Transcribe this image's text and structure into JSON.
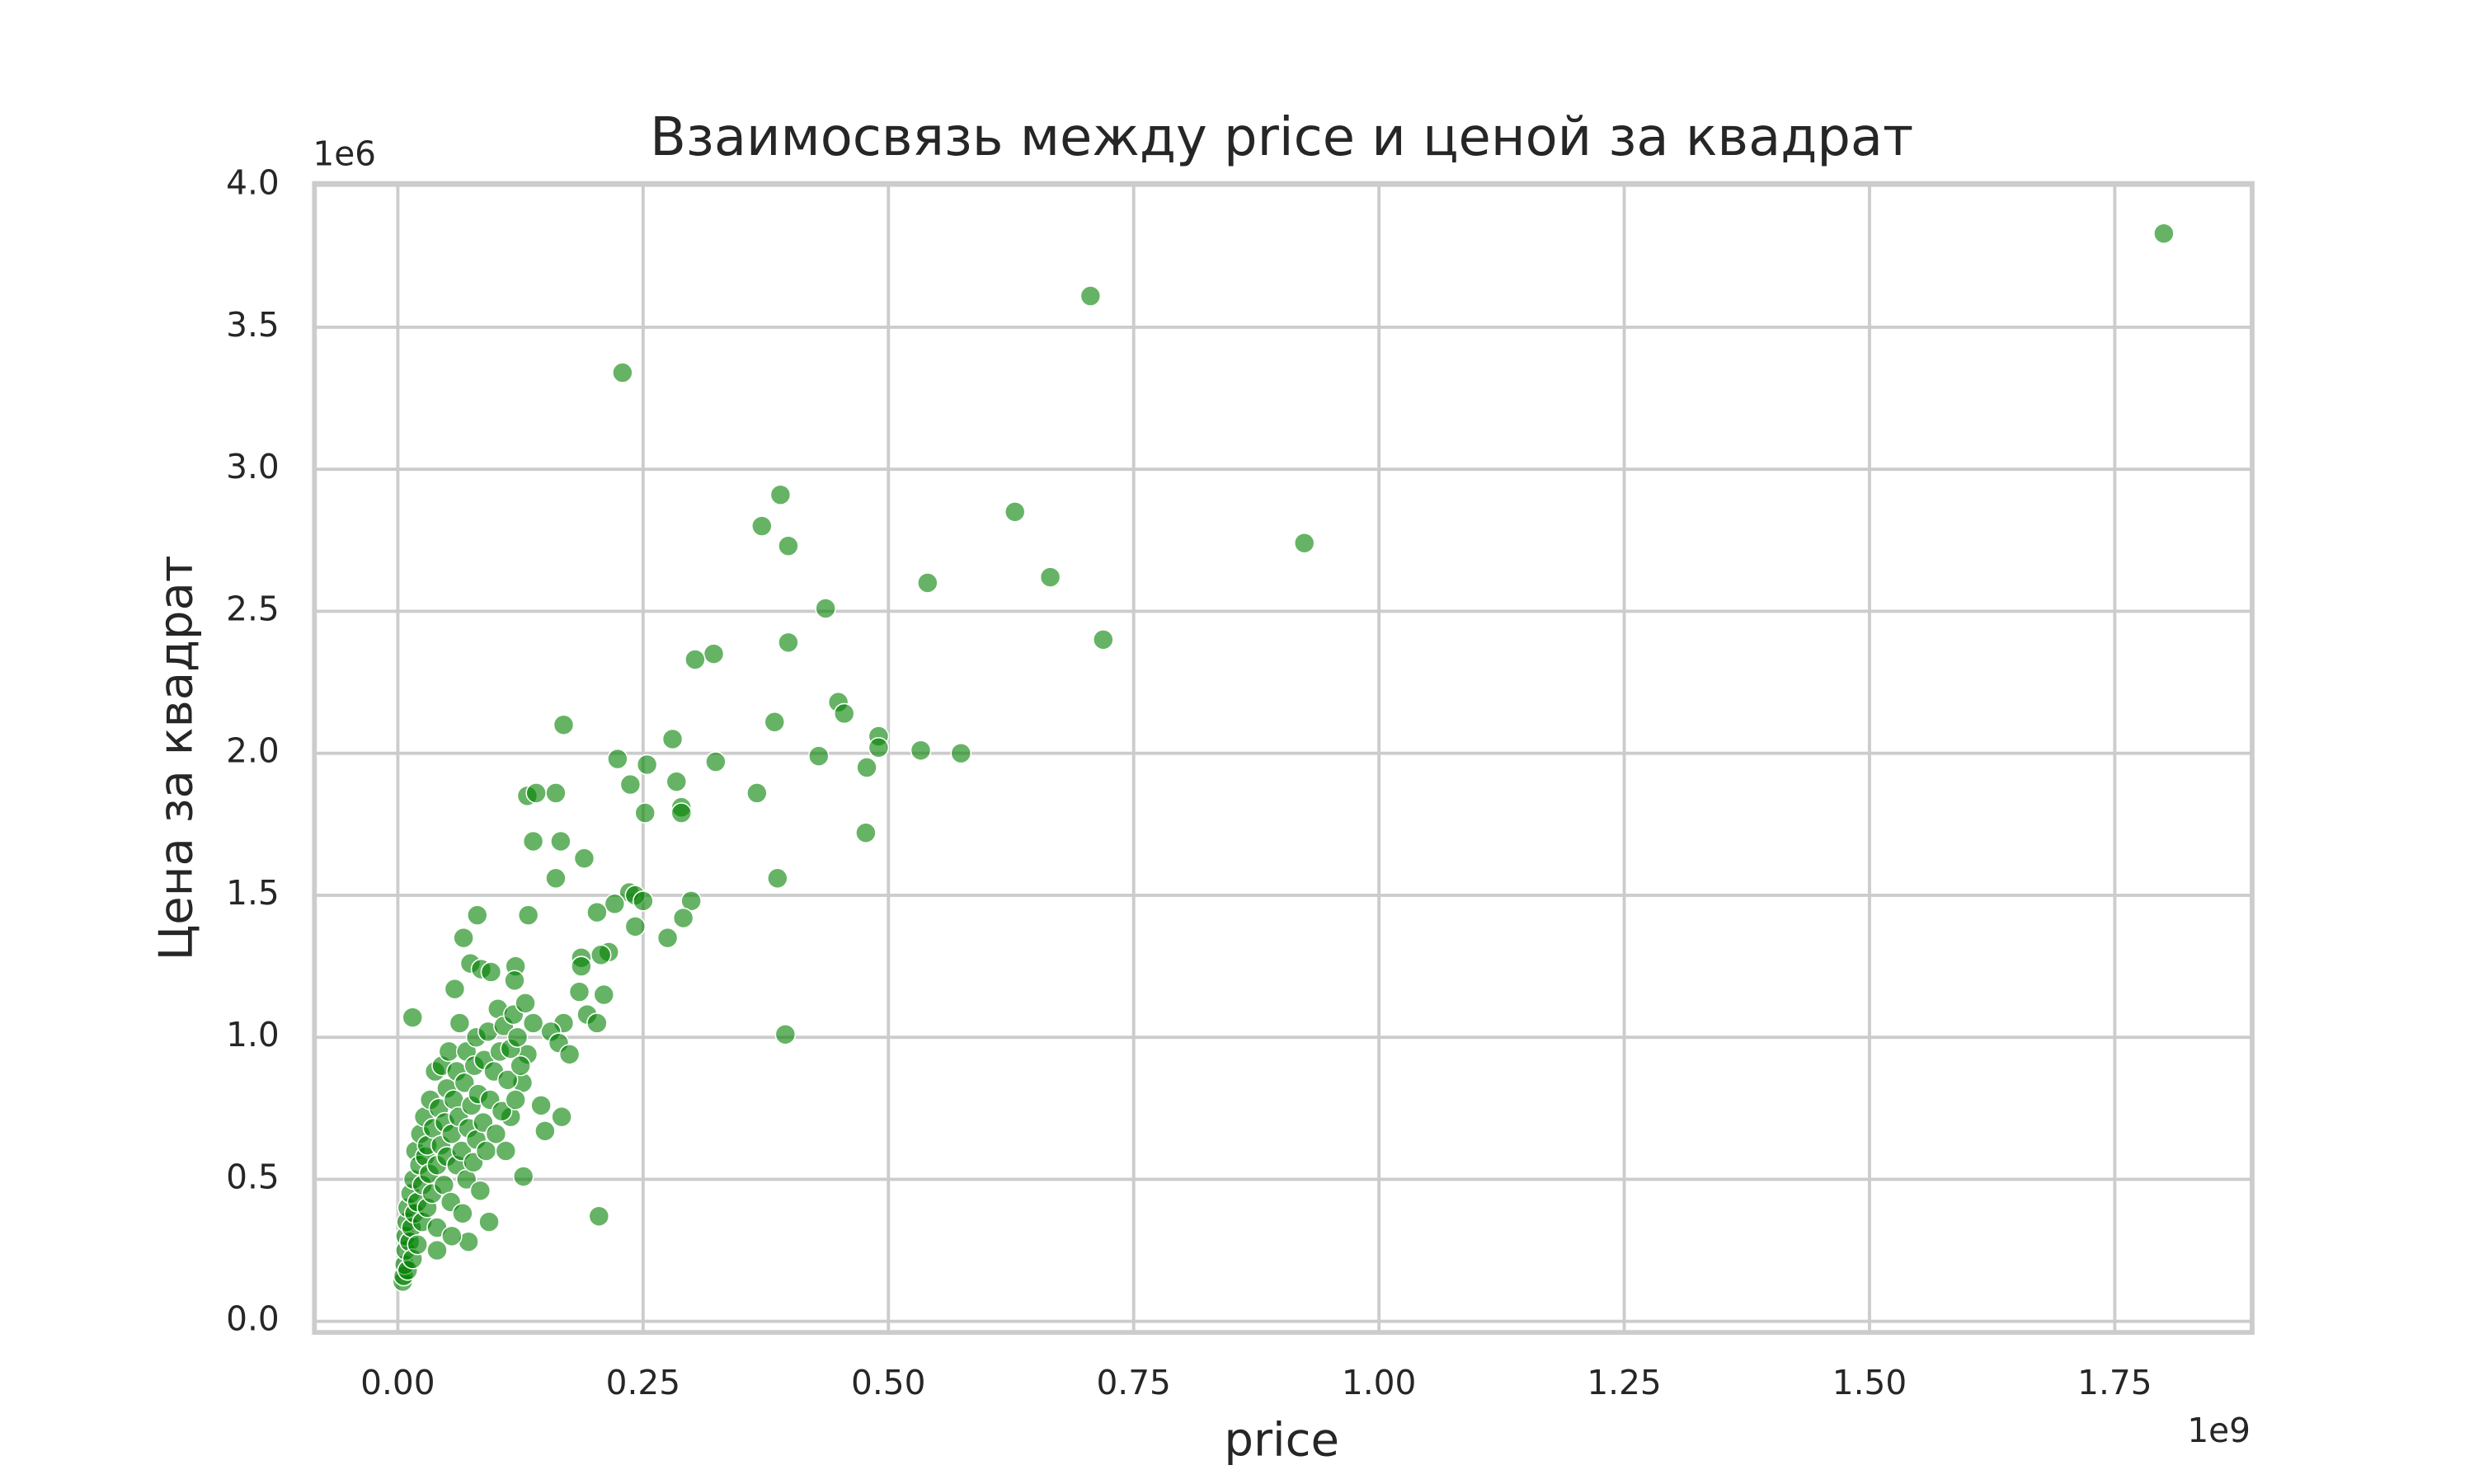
{
  "chart_data": {
    "type": "scatter",
    "title": "Взаимосвязь между price и ценой за квадрат",
    "x_label": "price",
    "y_label": "Цена за квадрат",
    "x_offset_label": "1e9",
    "y_offset_label": "1e6",
    "color": "green",
    "grid": true,
    "xlim": [
      -85000000,
      1890000000
    ],
    "ylim": [
      -39000,
      4006000
    ],
    "xticks": [
      {
        "value": 0,
        "label": "0.00"
      },
      {
        "value": 250000000,
        "label": "0.25"
      },
      {
        "value": 500000000,
        "label": "0.50"
      },
      {
        "value": 750000000,
        "label": "0.75"
      },
      {
        "value": 1000000000,
        "label": "1.00"
      },
      {
        "value": 1250000000,
        "label": "1.25"
      },
      {
        "value": 1500000000,
        "label": "1.50"
      },
      {
        "value": 1750000000,
        "label": "1.75"
      }
    ],
    "yticks": [
      {
        "value": 0,
        "label": "0.0"
      },
      {
        "value": 500000,
        "label": "0.5"
      },
      {
        "value": 1000000,
        "label": "1.0"
      },
      {
        "value": 1500000,
        "label": "1.5"
      },
      {
        "value": 2000000,
        "label": "2.0"
      },
      {
        "value": 2500000,
        "label": "2.5"
      },
      {
        "value": 3000000,
        "label": "3.0"
      },
      {
        "value": 3500000,
        "label": "3.5"
      },
      {
        "value": 4000000,
        "label": "4.0"
      }
    ],
    "x": [
      1800000000,
      706000000,
      229000000,
      924000000,
      390000000,
      371000000,
      398000000,
      629000000,
      665000000,
      540000000,
      719000000,
      436000000,
      398000000,
      322000000,
      303000000,
      449000000,
      455000000,
      169000000,
      384000000,
      490000000,
      490000000,
      533000000,
      574000000,
      429000000,
      280000000,
      224000000,
      324000000,
      254000000,
      478000000,
      237000000,
      284000000,
      366000000,
      161000000,
      132000000,
      141000000,
      289000000,
      289000000,
      252000000,
      477000000,
      138000000,
      166000000,
      190000000,
      161000000,
      387000000,
      236000000,
      242000000,
      250000000,
      299000000,
      221000000,
      291000000,
      242000000,
      275000000,
      203000000,
      133000000,
      81000000,
      67000000,
      215000000,
      207000000,
      187000000,
      187000000,
      210000000,
      185000000,
      193000000,
      203000000,
      169000000,
      156000000,
      164000000,
      175000000,
      395000000,
      15000000,
      167000000,
      146000000,
      150000000,
      128000000,
      205000000,
      93000000,
      120000000,
      119000000,
      138000000,
      132000000,
      127000000,
      115000000,
      5000000,
      6000000,
      7000000,
      8000000,
      8000000,
      9000000,
      10000000,
      10000000,
      12000000,
      13000000,
      14000000,
      15000000,
      16000000,
      17000000,
      18000000,
      20000000,
      20000000,
      22000000,
      23000000,
      25000000,
      25000000,
      27000000,
      28000000,
      30000000,
      30000000,
      32000000,
      33000000,
      35000000,
      36000000,
      38000000,
      40000000,
      40000000,
      42000000,
      44000000,
      45000000,
      47000000,
      48000000,
      50000000,
      50000000,
      52000000,
      54000000,
      55000000,
      57000000,
      58000000,
      60000000,
      60000000,
      62000000,
      63000000,
      65000000,
      66000000,
      68000000,
      70000000,
      70000000,
      72000000,
      74000000,
      75000000,
      77000000,
      78000000,
      80000000,
      80000000,
      82000000,
      84000000,
      85000000,
      87000000,
      88000000,
      90000000,
      92000000,
      94000000,
      95000000,
      98000000,
      100000000,
      102000000,
      104000000,
      106000000,
      108000000,
      110000000,
      112000000,
      115000000,
      118000000,
      120000000,
      122000000,
      125000000,
      130000000,
      72000000,
      55000000,
      40000000
    ],
    "values": [
      3830000,
      3610000,
      3340000,
      2740000,
      2910000,
      2800000,
      2730000,
      2850000,
      2620000,
      2600000,
      2400000,
      2510000,
      2390000,
      2350000,
      2330000,
      2180000,
      2140000,
      2100000,
      2110000,
      2060000,
      2020000,
      2010000,
      2000000,
      1990000,
      2050000,
      1980000,
      1970000,
      1960000,
      1950000,
      1890000,
      1900000,
      1860000,
      1860000,
      1850000,
      1860000,
      1810000,
      1790000,
      1790000,
      1720000,
      1690000,
      1690000,
      1630000,
      1560000,
      1560000,
      1510000,
      1500000,
      1480000,
      1480000,
      1470000,
      1420000,
      1390000,
      1350000,
      1440000,
      1430000,
      1430000,
      1350000,
      1300000,
      1290000,
      1280000,
      1250000,
      1150000,
      1160000,
      1080000,
      1050000,
      1050000,
      1020000,
      980000,
      940000,
      1010000,
      1070000,
      720000,
      760000,
      670000,
      510000,
      370000,
      350000,
      1250000,
      1200000,
      1050000,
      940000,
      840000,
      720000,
      140000,
      160000,
      200000,
      250000,
      300000,
      350000,
      180000,
      400000,
      280000,
      450000,
      330000,
      220000,
      500000,
      380000,
      600000,
      420000,
      270000,
      550000,
      660000,
      350000,
      480000,
      720000,
      580000,
      400000,
      620000,
      520000,
      780000,
      450000,
      680000,
      880000,
      550000,
      330000,
      750000,
      620000,
      900000,
      480000,
      700000,
      820000,
      580000,
      950000,
      420000,
      660000,
      780000,
      1170000,
      550000,
      880000,
      720000,
      1050000,
      600000,
      380000,
      840000,
      950000,
      500000,
      680000,
      1260000,
      760000,
      560000,
      900000,
      1000000,
      640000,
      800000,
      460000,
      1240000,
      700000,
      920000,
      600000,
      1020000,
      780000,
      1230000,
      880000,
      660000,
      1100000,
      950000,
      740000,
      1040000,
      600000,
      850000,
      960000,
      1080000,
      780000,
      1000000,
      900000,
      1120000,
      280000,
      300000,
      250000
    ]
  }
}
